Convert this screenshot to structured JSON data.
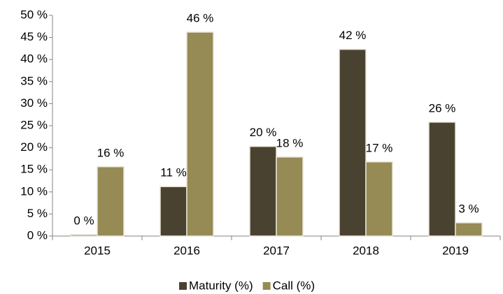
{
  "chart_data": {
    "type": "bar",
    "categories": [
      "2015",
      "2016",
      "2017",
      "2018",
      "2019"
    ],
    "series": [
      {
        "name": "Maturity (%)",
        "color": "#4a4230",
        "values": [
          0.3,
          11.2,
          20.3,
          42.3,
          25.8
        ],
        "value_labels": [
          "0 %",
          "11 %",
          "20 %",
          "42 %",
          "26 %"
        ]
      },
      {
        "name": "Call (%)",
        "color": "#968a55",
        "values": [
          15.7,
          46.2,
          17.9,
          16.8,
          3.0
        ],
        "value_labels": [
          "16 %",
          "46 %",
          "18 %",
          "17 %",
          "3 %"
        ]
      }
    ],
    "ylim": [
      0,
      50
    ],
    "yticks": [
      {
        "value": 0,
        "label": "0 %"
      },
      {
        "value": 5,
        "label": "5 %"
      },
      {
        "value": 10,
        "label": "10 %"
      },
      {
        "value": 15,
        "label": "15 %"
      },
      {
        "value": 20,
        "label": "20 %"
      },
      {
        "value": 25,
        "label": "25 %"
      },
      {
        "value": 30,
        "label": "30 %"
      },
      {
        "value": 35,
        "label": "35 %"
      },
      {
        "value": 40,
        "label": "40 %"
      },
      {
        "value": 45,
        "label": "45 %"
      },
      {
        "value": 50,
        "label": "50 %"
      }
    ],
    "grid": false,
    "legend": "bottom"
  }
}
